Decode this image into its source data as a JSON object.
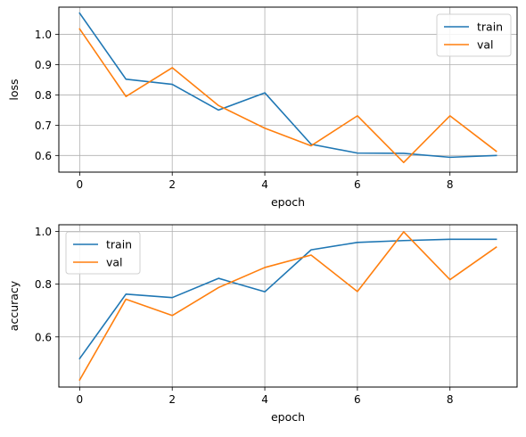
{
  "chart_data": [
    {
      "type": "line",
      "xlabel": "epoch",
      "ylabel": "loss",
      "x": [
        0,
        1,
        2,
        3,
        4,
        5,
        6,
        7,
        8,
        9
      ],
      "xlim": [
        -0.45,
        9.45
      ],
      "ylim": [
        0.545,
        1.09
      ],
      "xticks": [
        0,
        2,
        4,
        6,
        8
      ],
      "yticks": [
        0.6,
        0.7,
        0.8,
        0.9,
        1.0
      ],
      "ytick_labels": [
        "0.6",
        "0.7",
        "0.8",
        "0.9",
        "1.0"
      ],
      "grid": true,
      "legend_position": "upper right",
      "series": [
        {
          "name": "train",
          "color": "#1f77b4",
          "values": [
            1.07,
            0.852,
            0.835,
            0.75,
            0.807,
            0.637,
            0.608,
            0.607,
            0.594,
            0.6
          ]
        },
        {
          "name": "val",
          "color": "#ff7f0e",
          "values": [
            1.018,
            0.795,
            0.89,
            0.765,
            0.69,
            0.632,
            0.731,
            0.577,
            0.731,
            0.614
          ]
        }
      ]
    },
    {
      "type": "line",
      "xlabel": "epoch",
      "ylabel": "accuracy",
      "x": [
        0,
        1,
        2,
        3,
        4,
        5,
        6,
        7,
        8,
        9
      ],
      "xlim": [
        -0.45,
        9.45
      ],
      "ylim": [
        0.41,
        1.025
      ],
      "xticks": [
        0,
        2,
        4,
        6,
        8
      ],
      "yticks": [
        0.6,
        0.8,
        1.0
      ],
      "ytick_labels": [
        "0.6",
        "0.8",
        "1.0"
      ],
      "grid": true,
      "legend_position": "upper left",
      "series": [
        {
          "name": "train",
          "color": "#1f77b4",
          "values": [
            0.518,
            0.762,
            0.749,
            0.822,
            0.771,
            0.93,
            0.958,
            0.965,
            0.97,
            0.97
          ]
        },
        {
          "name": "val",
          "color": "#ff7f0e",
          "values": [
            0.437,
            0.743,
            0.681,
            0.787,
            0.863,
            0.91,
            0.772,
            0.998,
            0.817,
            0.94
          ]
        }
      ]
    }
  ]
}
